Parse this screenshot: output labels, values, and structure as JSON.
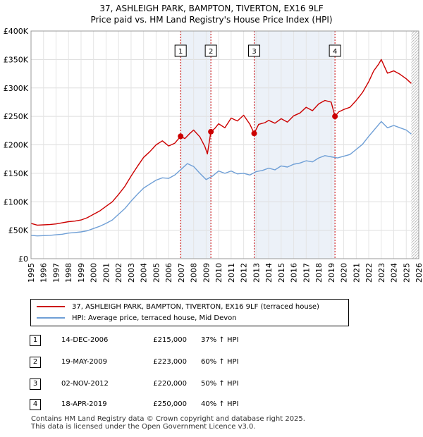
{
  "title_line1": "37, ASHLEIGH PARK, BAMPTON, TIVERTON, EX16 9LF",
  "title_line2": "Price paid vs. HM Land Registry's House Price Index (HPI)",
  "colors": {
    "property": "#cc0000",
    "hpi": "#6f9fd6",
    "shade": "#dce6f2",
    "marker_line": "#cc0000"
  },
  "chart_data": {
    "type": "line",
    "title": "Price paid vs. HM Land Registry's House Price Index (HPI)",
    "xlabel": "",
    "ylabel": "",
    "xlim": [
      1995,
      2026
    ],
    "ylim": [
      0,
      400000
    ],
    "x_ticks": [
      1995,
      1996,
      1997,
      1998,
      1999,
      2000,
      2001,
      2002,
      2003,
      2004,
      2005,
      2006,
      2007,
      2008,
      2009,
      2010,
      2011,
      2012,
      2013,
      2014,
      2015,
      2016,
      2017,
      2018,
      2019,
      2020,
      2021,
      2022,
      2023,
      2024,
      2025,
      2026
    ],
    "y_ticks": [
      0,
      50000,
      100000,
      150000,
      200000,
      250000,
      300000,
      350000,
      400000
    ],
    "y_tick_labels": [
      "£0",
      "£50K",
      "£100K",
      "£150K",
      "£200K",
      "£250K",
      "£300K",
      "£350K",
      "£400K"
    ],
    "series": [
      {
        "name": "37, ASHLEIGH PARK, BAMPTON, TIVERTON, EX16 9LF (terraced house)",
        "color": "#cc0000",
        "x": [
          1995.0,
          1995.5,
          1996.0,
          1996.5,
          1997.0,
          1997.5,
          1998.0,
          1998.5,
          1999.0,
          1999.5,
          2000.0,
          2000.5,
          2001.0,
          2001.5,
          2002.0,
          2002.5,
          2003.0,
          2003.5,
          2004.0,
          2004.5,
          2005.0,
          2005.5,
          2006.0,
          2006.5,
          2006.96,
          2007.3,
          2007.7,
          2008.0,
          2008.5,
          2008.9,
          2009.1,
          2009.38,
          2009.7,
          2010.0,
          2010.5,
          2011.0,
          2011.5,
          2012.0,
          2012.5,
          2012.84,
          2013.2,
          2013.7,
          2014.0,
          2014.5,
          2015.0,
          2015.5,
          2016.0,
          2016.5,
          2017.0,
          2017.5,
          2018.0,
          2018.5,
          2019.0,
          2019.3,
          2019.6,
          2020.0,
          2020.5,
          2021.0,
          2021.5,
          2022.0,
          2022.4,
          2022.8,
          2023.0,
          2023.5,
          2024.0,
          2024.5,
          2025.0,
          2025.4
        ],
        "y": [
          62000,
          59000,
          59500,
          60000,
          61000,
          63000,
          65000,
          66000,
          68000,
          72000,
          78000,
          84000,
          92000,
          100000,
          113000,
          127000,
          145000,
          162000,
          178000,
          188000,
          200000,
          207000,
          198000,
          203000,
          215000,
          211000,
          220000,
          226000,
          214000,
          197000,
          184000,
          223000,
          229000,
          237000,
          230000,
          247000,
          242000,
          252000,
          236000,
          220000,
          236000,
          239000,
          243000,
          238000,
          246000,
          240000,
          251000,
          256000,
          266000,
          260000,
          272000,
          278000,
          275000,
          250000,
          258000,
          262000,
          266000,
          278000,
          292000,
          311000,
          330000,
          342000,
          350000,
          326000,
          330000,
          324000,
          316000,
          308000
        ]
      },
      {
        "name": "HPI: Average price, terraced house, Mid Devon",
        "color": "#6f9fd6",
        "x": [
          1995.0,
          1995.5,
          1996.0,
          1996.5,
          1997.0,
          1997.5,
          1998.0,
          1998.5,
          1999.0,
          1999.5,
          2000.0,
          2000.5,
          2001.0,
          2001.5,
          2002.0,
          2002.5,
          2003.0,
          2003.5,
          2004.0,
          2004.5,
          2005.0,
          2005.5,
          2006.0,
          2006.5,
          2007.0,
          2007.5,
          2008.0,
          2008.5,
          2009.0,
          2009.5,
          2010.0,
          2010.5,
          2011.0,
          2011.5,
          2012.0,
          2012.5,
          2013.0,
          2013.5,
          2014.0,
          2014.5,
          2015.0,
          2015.5,
          2016.0,
          2016.5,
          2017.0,
          2017.5,
          2018.0,
          2018.5,
          2019.0,
          2019.5,
          2020.0,
          2020.5,
          2021.0,
          2021.5,
          2022.0,
          2022.5,
          2023.0,
          2023.5,
          2024.0,
          2024.5,
          2025.0,
          2025.4
        ],
        "y": [
          41000,
          40000,
          40500,
          41000,
          42000,
          43000,
          45000,
          46000,
          47000,
          49000,
          53000,
          57000,
          62000,
          68000,
          78000,
          88000,
          101000,
          113000,
          124000,
          131000,
          138000,
          142000,
          141000,
          147000,
          157000,
          167000,
          162000,
          150000,
          139000,
          145000,
          154000,
          150000,
          154000,
          149000,
          150000,
          147000,
          153000,
          155000,
          159000,
          156000,
          163000,
          161000,
          166000,
          168000,
          172000,
          170000,
          177000,
          181000,
          179000,
          177000,
          180000,
          183000,
          192000,
          201000,
          215000,
          228000,
          241000,
          230000,
          234000,
          230000,
          226000,
          219000
        ]
      }
    ],
    "sale_markers": [
      {
        "label": "1",
        "x": 2006.96,
        "y": 215000
      },
      {
        "label": "2",
        "x": 2009.38,
        "y": 223000
      },
      {
        "label": "3",
        "x": 2012.84,
        "y": 220000
      },
      {
        "label": "4",
        "x": 2019.3,
        "y": 250000
      }
    ],
    "shaded_spans": [
      [
        2006.96,
        2009.38
      ],
      [
        2012.84,
        2019.3
      ]
    ],
    "projection_start": 2025.4
  },
  "legend": {
    "property": "37, ASHLEIGH PARK, BAMPTON, TIVERTON, EX16 9LF (terraced house)",
    "hpi": "HPI: Average price, terraced house, Mid Devon"
  },
  "sales": [
    {
      "num": "1",
      "date": "14-DEC-2006",
      "price": "£215,000",
      "hpi": "37% ↑ HPI"
    },
    {
      "num": "2",
      "date": "19-MAY-2009",
      "price": "£223,000",
      "hpi": "60% ↑ HPI"
    },
    {
      "num": "3",
      "date": "02-NOV-2012",
      "price": "£220,000",
      "hpi": "50% ↑ HPI"
    },
    {
      "num": "4",
      "date": "18-APR-2019",
      "price": "£250,000",
      "hpi": "40% ↑ HPI"
    }
  ],
  "footer_line1": "Contains HM Land Registry data © Crown copyright and database right 2025.",
  "footer_line2": "This data is licensed under the Open Government Licence v3.0."
}
